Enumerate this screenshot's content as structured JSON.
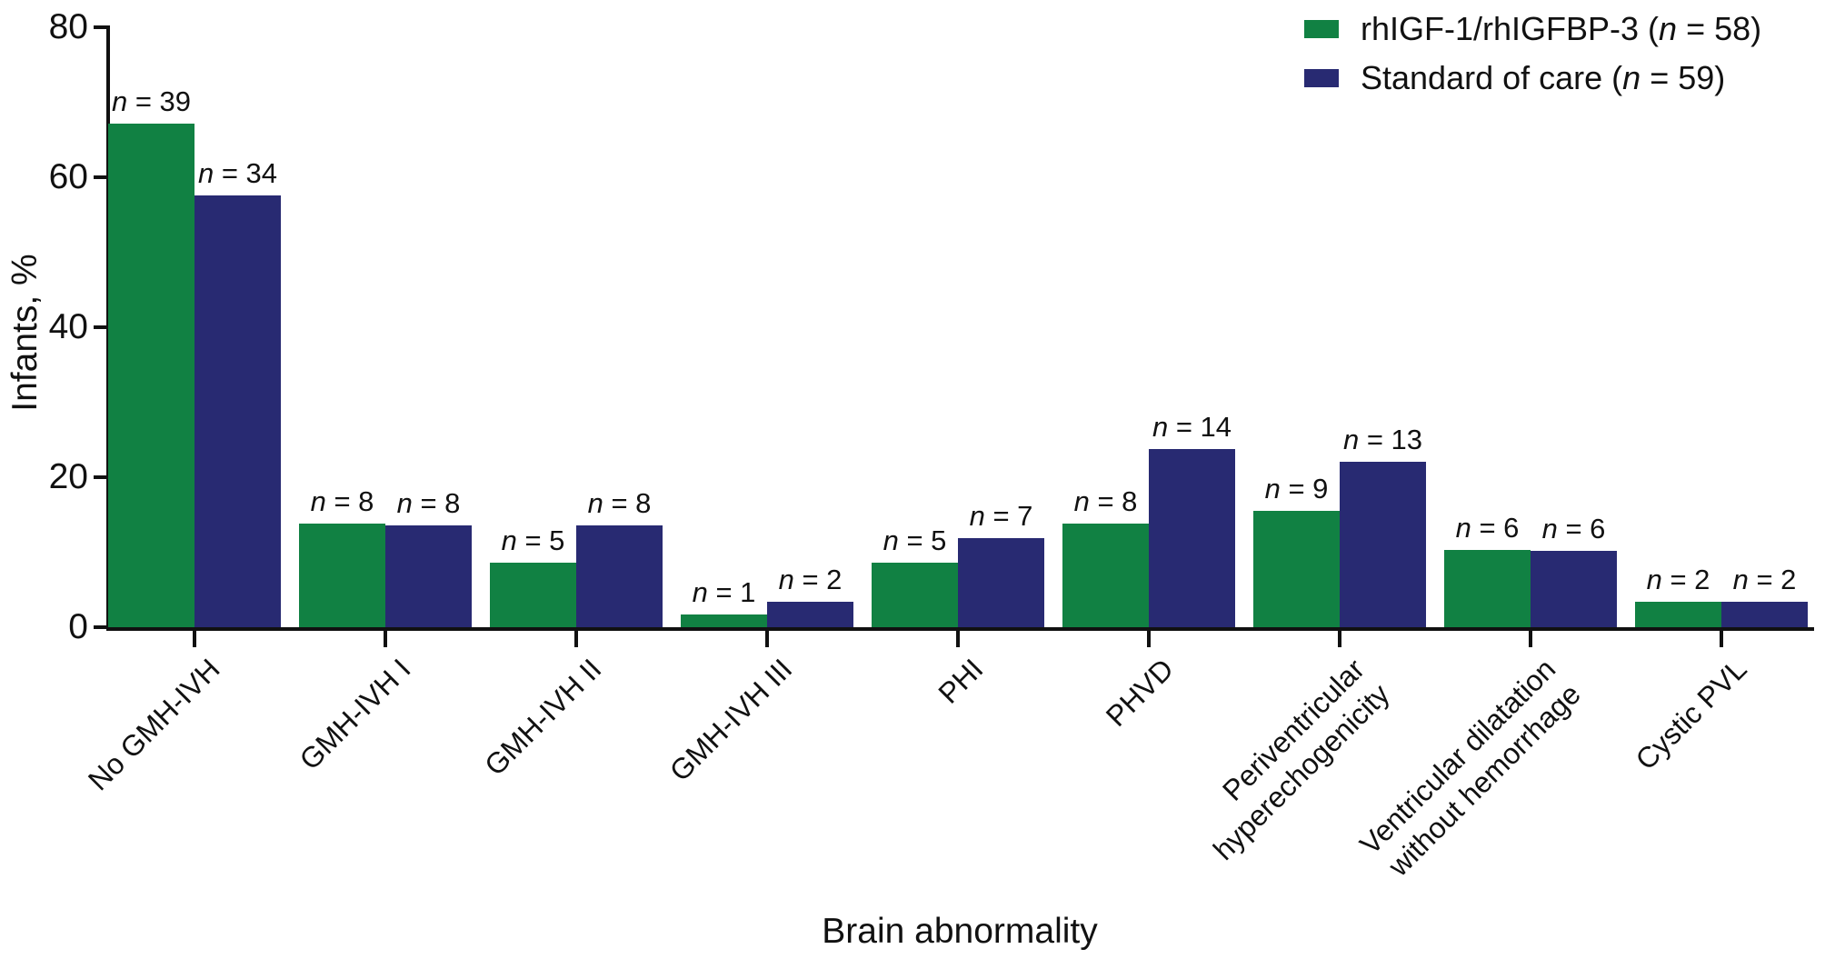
{
  "colors": {
    "series_green": "#118143",
    "series_navy": "#282A72",
    "axis": "#111111",
    "text": "#111111",
    "background": "#ffffff"
  },
  "chart_data": {
    "type": "bar",
    "title": "",
    "xlabel": "Brain abnormality",
    "ylabel": "Infants, %",
    "ylim": [
      0,
      80
    ],
    "y_ticks": [
      0,
      20,
      40,
      60,
      80
    ],
    "grid": false,
    "legend_position": "top-right",
    "bar_label_symbol": "n",
    "bar_label_separator": " = ",
    "categories": [
      [
        "No GMH-IVH"
      ],
      [
        "GMH-IVH I"
      ],
      [
        "GMH-IVH II"
      ],
      [
        "GMH-IVH III"
      ],
      [
        "PHI"
      ],
      [
        "PHVD"
      ],
      [
        "Periventricular",
        "hyperechogenicity"
      ],
      [
        "Ventricular dilatation",
        "without hemorrhage"
      ],
      [
        "Cystic PVL"
      ]
    ],
    "series": [
      {
        "name": "rhIGF-1/rhIGFBP-3",
        "n": 58,
        "color": "#118143",
        "counts": [
          39,
          8,
          5,
          1,
          5,
          8,
          9,
          6,
          2
        ],
        "pct": [
          67.2,
          13.8,
          8.6,
          1.7,
          8.6,
          13.8,
          15.5,
          10.3,
          3.4
        ]
      },
      {
        "name": "Standard of care",
        "n": 59,
        "color": "#282A72",
        "counts": [
          34,
          8,
          8,
          2,
          7,
          14,
          13,
          6,
          2
        ],
        "pct": [
          57.6,
          13.6,
          13.6,
          3.4,
          11.9,
          23.7,
          22.0,
          10.2,
          3.4
        ]
      }
    ]
  }
}
